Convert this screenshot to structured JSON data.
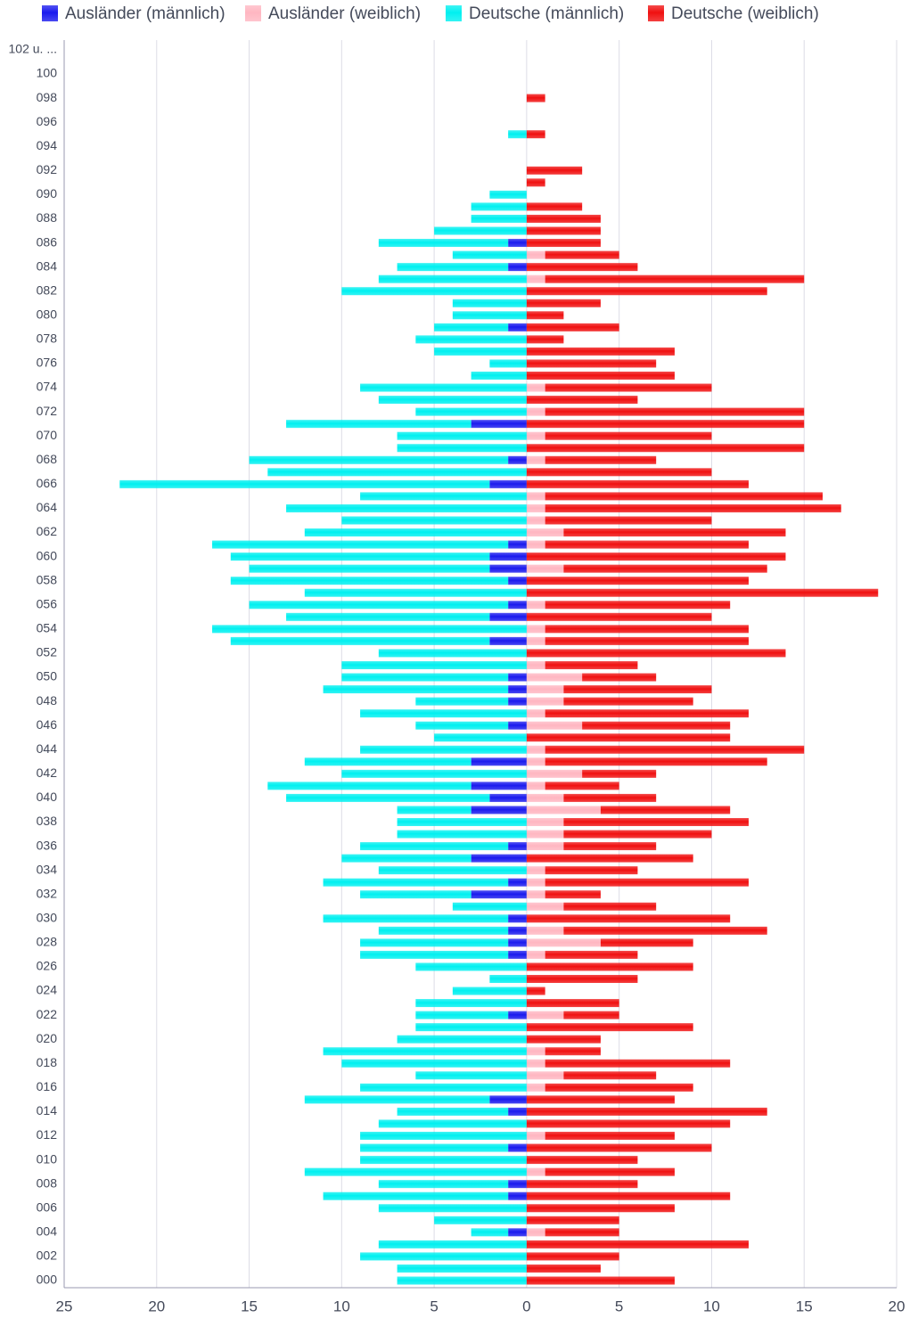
{
  "chart_data": {
    "type": "pyramid",
    "categories": [
      "000",
      null,
      "002",
      null,
      "004",
      null,
      "006",
      null,
      "008",
      null,
      "010",
      null,
      "012",
      null,
      "014",
      null,
      "016",
      null,
      "018",
      null,
      "020",
      null,
      "022",
      null,
      "024",
      null,
      "026",
      null,
      "028",
      null,
      "030",
      null,
      "032",
      null,
      "034",
      null,
      "036",
      null,
      "038",
      null,
      "040",
      null,
      "042",
      null,
      "044",
      null,
      "046",
      null,
      "048",
      null,
      "050",
      null,
      "052",
      null,
      "054",
      null,
      "056",
      null,
      "058",
      null,
      "060",
      null,
      "062",
      null,
      "064",
      null,
      "066",
      null,
      "068",
      null,
      "070",
      null,
      "072",
      null,
      "074",
      null,
      "076",
      null,
      "078",
      null,
      "080",
      null,
      "082",
      null,
      "084",
      null,
      "086",
      null,
      "088",
      null,
      "090",
      null,
      "092",
      null,
      "094",
      null,
      "096",
      null,
      "098",
      null,
      "100",
      null,
      "102 u. ..."
    ],
    "series": [
      {
        "name": "Ausländer (männlich)",
        "color": "#1a1aee",
        "side": "left",
        "values": [
          0,
          0,
          0,
          0,
          -1,
          0,
          0,
          -1,
          -1,
          0,
          0,
          -1,
          0,
          0,
          -1,
          -2,
          0,
          0,
          0,
          0,
          0,
          0,
          -1,
          0,
          0,
          0,
          0,
          -1,
          -1,
          -1,
          -1,
          0,
          -3,
          -1,
          0,
          -3,
          -1,
          0,
          0,
          -3,
          -2,
          -3,
          0,
          -3,
          0,
          0,
          -1,
          0,
          -1,
          -1,
          -1,
          0,
          0,
          -2,
          0,
          -2,
          -1,
          0,
          -1,
          -2,
          -2,
          -1,
          0,
          0,
          0,
          0,
          -2,
          0,
          -1,
          0,
          0,
          -3,
          0,
          0,
          0,
          0,
          0,
          0,
          0,
          -1,
          0,
          0,
          0,
          0,
          -1,
          0,
          -1,
          0,
          0,
          0,
          0,
          0,
          0,
          0,
          0,
          0,
          0,
          0,
          0,
          0,
          0,
          0,
          0
        ]
      },
      {
        "name": "Ausländer (weiblich)",
        "color": "#ffb6c1",
        "side": "right",
        "values": [
          0,
          0,
          0,
          0,
          1,
          0,
          0,
          0,
          0,
          1,
          0,
          0,
          1,
          0,
          0,
          0,
          1,
          2,
          1,
          1,
          0,
          0,
          2,
          0,
          0,
          0,
          0,
          1,
          4,
          2,
          0,
          2,
          1,
          1,
          1,
          0,
          2,
          2,
          2,
          4,
          2,
          1,
          3,
          1,
          1,
          0,
          3,
          1,
          2,
          2,
          3,
          1,
          0,
          1,
          1,
          0,
          1,
          0,
          0,
          2,
          0,
          1,
          2,
          1,
          1,
          1,
          0,
          0,
          1,
          0,
          1,
          0,
          1,
          0,
          1,
          0,
          0,
          0,
          0,
          0,
          0,
          0,
          0,
          1,
          0,
          1,
          0,
          0,
          0,
          0,
          0,
          0,
          0,
          0,
          0,
          0,
          0,
          0,
          0,
          0,
          0,
          0,
          0
        ]
      },
      {
        "name": "Deutsche (männlich)",
        "color": "#00f0f0",
        "side": "left",
        "values": [
          -7,
          -7,
          -9,
          -8,
          -2,
          -5,
          -8,
          -10,
          -7,
          -12,
          -9,
          -8,
          -9,
          -8,
          -6,
          -10,
          -9,
          -6,
          -10,
          -11,
          -7,
          -6,
          -5,
          -6,
          -4,
          -2,
          -6,
          -8,
          -8,
          -7,
          -10,
          -4,
          -6,
          -10,
          -8,
          -7,
          -8,
          -7,
          -7,
          -4,
          -11,
          -11,
          -10,
          -9,
          -9,
          -5,
          -5,
          -9,
          -5,
          -10,
          -9,
          -10,
          -8,
          -14,
          -17,
          -11,
          -14,
          -12,
          -15,
          -13,
          -14,
          -16,
          -12,
          -10,
          -13,
          -9,
          -20,
          -14,
          -14,
          -7,
          -7,
          -10,
          -6,
          -8,
          -9,
          -3,
          -2,
          -5,
          -6,
          -4,
          -4,
          -4,
          -10,
          -8,
          -6,
          -4,
          -7,
          -5,
          -3,
          -3,
          -2,
          0,
          0,
          0,
          0,
          -1,
          0,
          0,
          0,
          0,
          0,
          0,
          0
        ]
      },
      {
        "name": "Deutsche (weiblich)",
        "color": "#f01010",
        "side": "right",
        "values": [
          8,
          4,
          5,
          12,
          4,
          5,
          8,
          11,
          6,
          7,
          6,
          10,
          7,
          11,
          13,
          8,
          8,
          5,
          10,
          3,
          4,
          9,
          3,
          5,
          1,
          6,
          9,
          5,
          5,
          11,
          11,
          5,
          3,
          11,
          5,
          9,
          5,
          8,
          10,
          7,
          5,
          4,
          4,
          12,
          14,
          11,
          8,
          11,
          7,
          8,
          4,
          5,
          14,
          11,
          11,
          10,
          10,
          19,
          12,
          11,
          14,
          11,
          12,
          9,
          16,
          15,
          12,
          10,
          6,
          15,
          9,
          15,
          14,
          6,
          9,
          8,
          7,
          8,
          2,
          5,
          2,
          4,
          13,
          14,
          6,
          4,
          4,
          4,
          4,
          3,
          0,
          1,
          3,
          0,
          0,
          1,
          0,
          0,
          1,
          0,
          0,
          0,
          0
        ]
      }
    ],
    "xlim": [
      -25,
      20
    ],
    "xticks": [
      {
        "value": -25,
        "label": "25"
      },
      {
        "value": -20,
        "label": "20"
      },
      {
        "value": -15,
        "label": "15"
      },
      {
        "value": -10,
        "label": "10"
      },
      {
        "value": -5,
        "label": "5"
      },
      0,
      5,
      10,
      15,
      20
    ],
    "grid": true
  }
}
